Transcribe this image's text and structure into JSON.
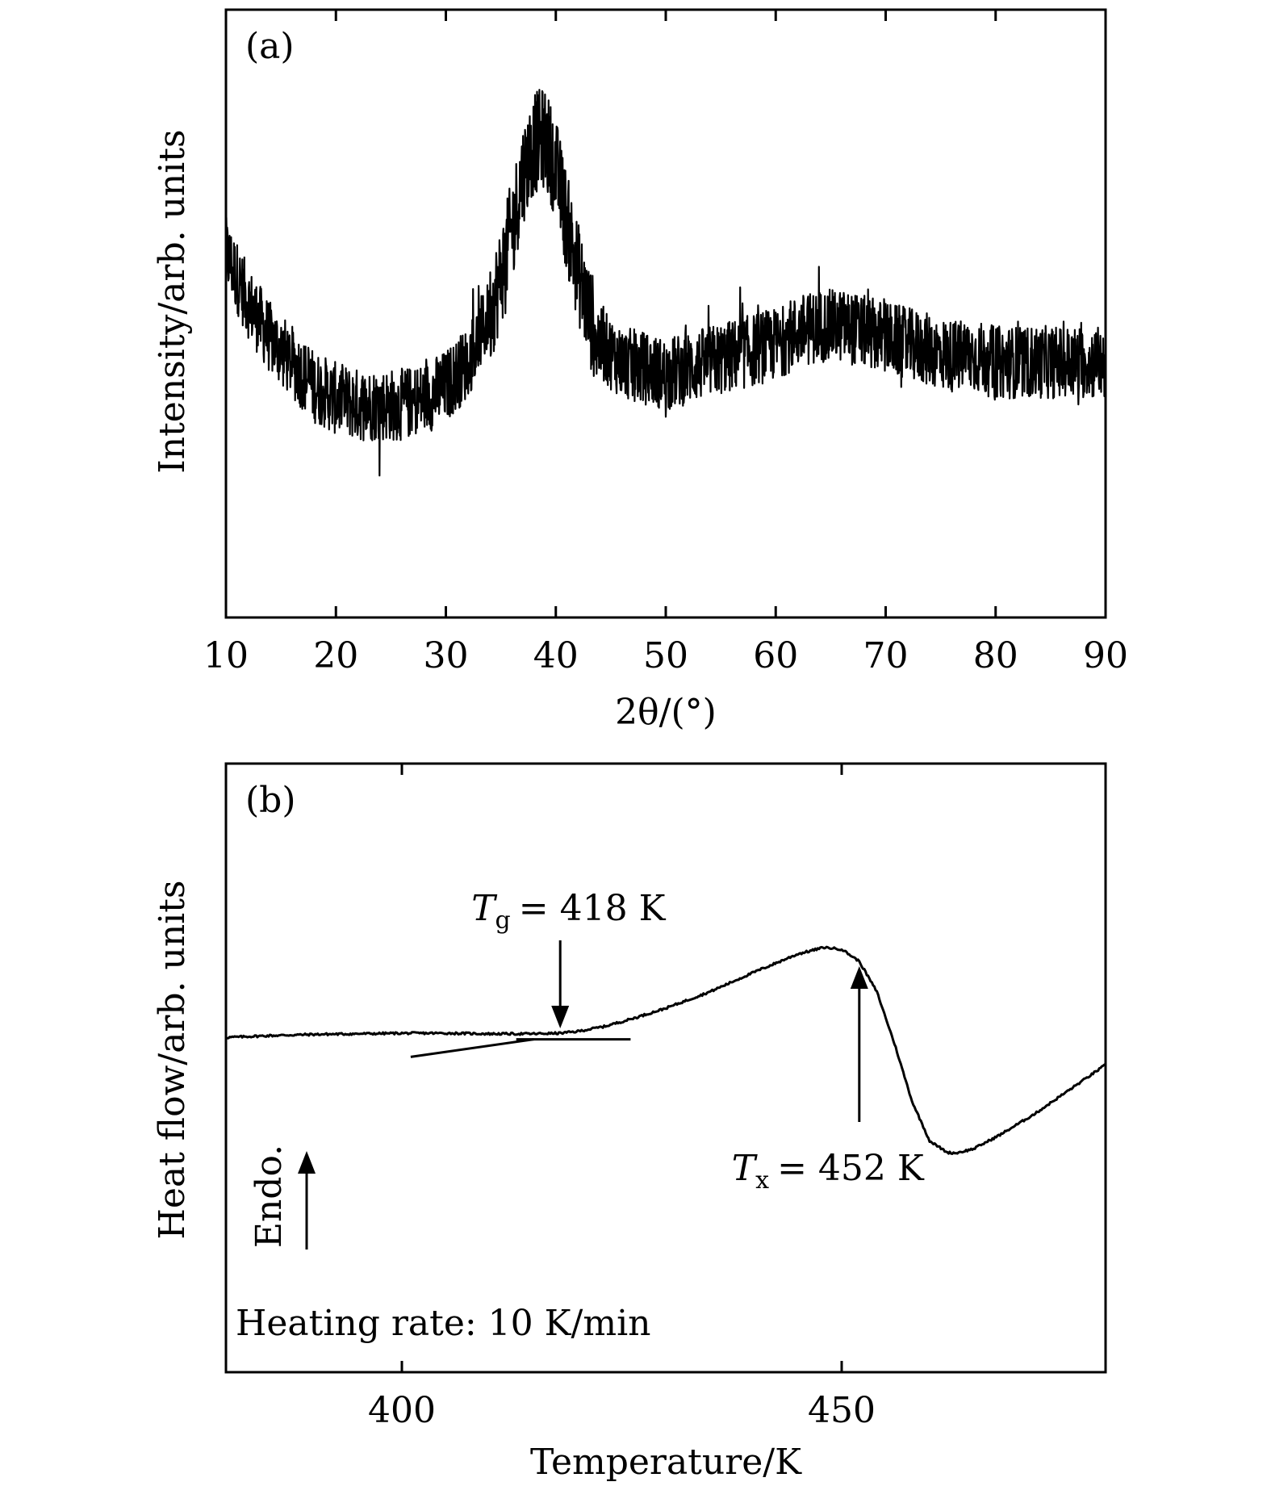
{
  "chart_data": [
    {
      "panel_label": "(a)",
      "type": "line",
      "xlabel": "2θ/(°)",
      "ylabel": "Intensity/arb. units",
      "xlim": [
        10,
        90
      ],
      "ylim": [
        0,
        100
      ],
      "xticks": [
        10,
        20,
        30,
        40,
        50,
        60,
        70,
        80,
        90
      ],
      "xtick_labels": [
        "10",
        "20",
        "30",
        "40",
        "50",
        "60",
        "70",
        "80",
        "90"
      ],
      "y_ticks_shown": false,
      "grid": false,
      "noise_amplitude": 6,
      "series": [
        {
          "x": [
            10,
            12,
            14,
            16,
            18,
            20,
            22,
            24,
            26,
            28,
            30,
            32,
            34,
            35,
            36,
            37,
            38,
            39,
            40,
            41,
            42,
            43,
            44,
            46,
            48,
            50,
            52,
            54,
            56,
            58,
            60,
            62,
            64,
            66,
            68,
            70,
            72,
            74,
            76,
            78,
            80,
            82,
            84,
            86,
            88,
            90
          ],
          "y": [
            60,
            52,
            46,
            42,
            38,
            36,
            35,
            35,
            35,
            36,
            38,
            42,
            50,
            56,
            64,
            73,
            78,
            79,
            74,
            65,
            57,
            50,
            45,
            42,
            41,
            40,
            41,
            42,
            43,
            44,
            45,
            47,
            48,
            48,
            47,
            46,
            45,
            44,
            43,
            43,
            42,
            42,
            42,
            42,
            42,
            42
          ]
        }
      ]
    },
    {
      "panel_label": "(b)",
      "type": "line",
      "xlabel": "Temperature/K",
      "ylabel": "Heat flow/arb. units",
      "xlim": [
        380,
        480
      ],
      "ylim": [
        0,
        100
      ],
      "xticks": [
        400,
        450
      ],
      "xtick_labels": [
        "400",
        "450"
      ],
      "y_ticks_shown": false,
      "grid": false,
      "series": [
        {
          "x": [
            380,
            385,
            390,
            395,
            400,
            405,
            410,
            415,
            418,
            420,
            423,
            426,
            430,
            435,
            440,
            445,
            448,
            450,
            452,
            454,
            456,
            458,
            460,
            462,
            463,
            465,
            468,
            472,
            476,
            480
          ],
          "y": [
            55,
            55.3,
            55.5,
            55.6,
            55.7,
            55.7,
            55.6,
            55.6,
            55.7,
            56,
            56.8,
            58,
            59.8,
            62.5,
            65.7,
            68.7,
            69.8,
            69.5,
            67.5,
            62.5,
            54,
            44.5,
            38,
            36.1,
            36,
            36.7,
            39,
            42.5,
            46.5,
            50.5
          ]
        }
      ],
      "tangent_lines": [
        {
          "x": [
            401,
            415
          ],
          "y": [
            51.8,
            54.7
          ]
        },
        {
          "x": [
            413,
            426
          ],
          "y": [
            54.7,
            54.7
          ]
        }
      ],
      "annotations": [
        {
          "symbol": "T",
          "subscript": "g",
          "value_text": "= 418 K",
          "x": 418
        },
        {
          "symbol": "T",
          "subscript": "x",
          "value_text": "= 452 K",
          "x": 452
        }
      ],
      "endo_label": "Endo.",
      "heating_rate_text": "Heating rate: 10 K/min"
    }
  ]
}
